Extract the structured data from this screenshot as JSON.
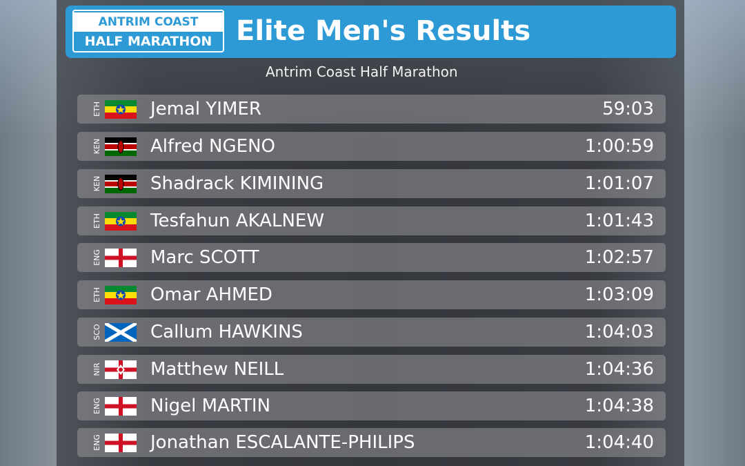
{
  "header": {
    "logo_line1": "ANTRIM COAST",
    "logo_line2": "HALF MARATHON",
    "title": "Elite Men's Results",
    "subtitle": "Antrim Coast Half Marathon"
  },
  "results": [
    {
      "country": "ETH",
      "name": "Jemal YIMER",
      "time": "59:03"
    },
    {
      "country": "KEN",
      "name": "Alfred NGENO",
      "time": "1:00:59"
    },
    {
      "country": "KEN",
      "name": "Shadrack KIMINING",
      "time": "1:01:07"
    },
    {
      "country": "ETH",
      "name": "Tesfahun AKALNEW",
      "time": "1:01:43"
    },
    {
      "country": "ENG",
      "name": "Marc SCOTT",
      "time": "1:02:57"
    },
    {
      "country": "ETH",
      "name": "Omar AHMED",
      "time": "1:03:09"
    },
    {
      "country": "SCO",
      "name": "Callum HAWKINS",
      "time": "1:04:03"
    },
    {
      "country": "NIR",
      "name": "Matthew NEILL",
      "time": "1:04:36"
    },
    {
      "country": "ENG",
      "name": "Nigel MARTIN",
      "time": "1:04:38"
    },
    {
      "country": "ENG",
      "name": "Jonathan ESCALANTE-PHILIPS",
      "time": "1:04:40"
    }
  ]
}
